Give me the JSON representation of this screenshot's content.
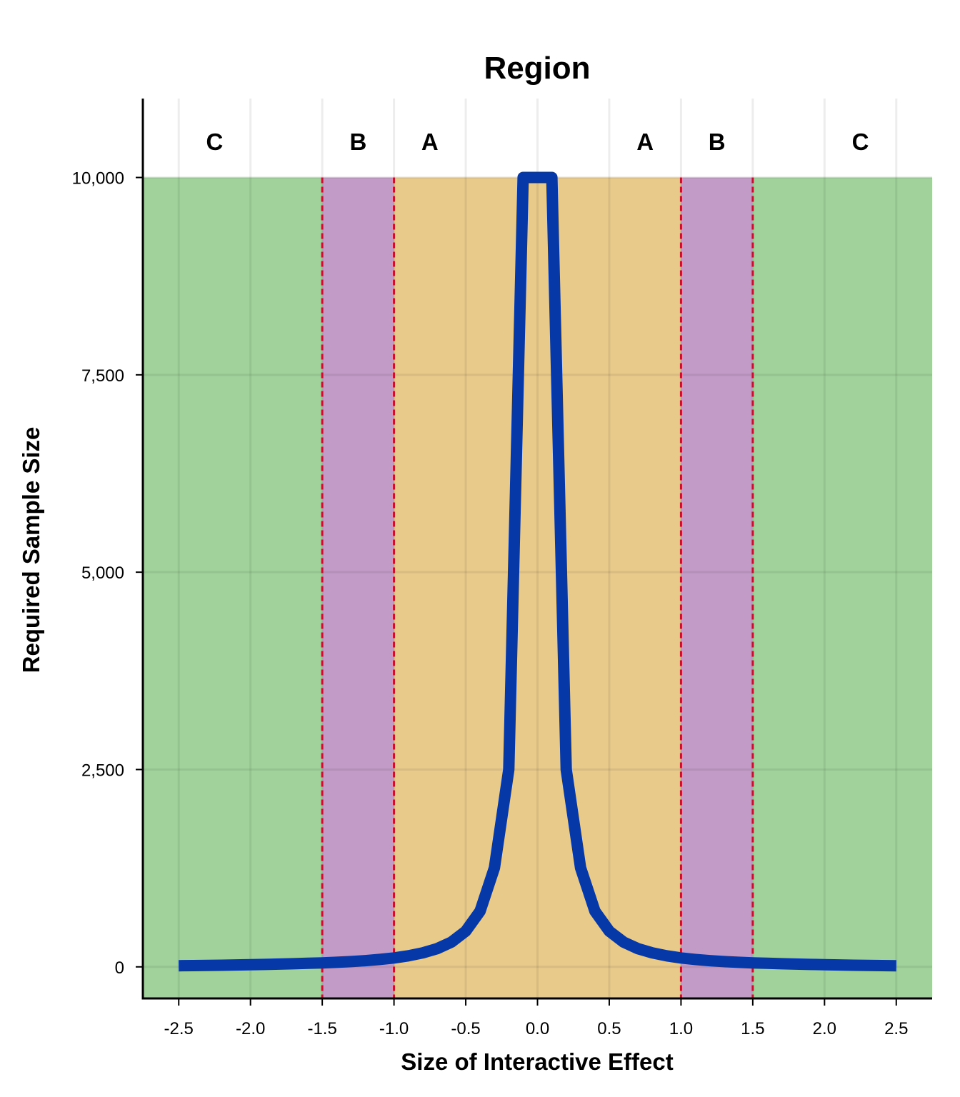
{
  "chart_data": {
    "type": "line",
    "title": "Region",
    "xlabel": "Size of Interactive Effect",
    "ylabel": "Required Sample Size",
    "xlim": [
      -2.75,
      2.75
    ],
    "ylim": [
      -400,
      11000
    ],
    "y_panel_max": 10000,
    "x_ticks": [
      -2.5,
      -2.0,
      -1.5,
      -1.0,
      -0.5,
      0.0,
      0.5,
      1.0,
      1.5,
      2.0,
      2.5
    ],
    "x_tick_labels": [
      "-2.5",
      "-2.0",
      "-1.5",
      "-1.0",
      "-0.5",
      "0.0",
      "0.5",
      "1.0",
      "1.5",
      "2.0",
      "2.5"
    ],
    "y_ticks": [
      0,
      2500,
      5000,
      7500,
      10000
    ],
    "y_tick_labels": [
      "0",
      "2,500",
      "5,000",
      "7,500",
      "10,000"
    ],
    "grid": true,
    "regions": [
      {
        "label": "C",
        "x": [
          -2.75,
          -1.5
        ],
        "color": "#a1d29b"
      },
      {
        "label": "B",
        "x": [
          -1.5,
          -1.0
        ],
        "color": "#c29bc7"
      },
      {
        "label": "A",
        "x": [
          -1.0,
          1.0
        ],
        "color": "#e8ca8b"
      },
      {
        "label": "B",
        "x": [
          1.0,
          1.5
        ],
        "color": "#c29bc7"
      },
      {
        "label": "C",
        "x": [
          1.5,
          2.75
        ],
        "color": "#a1d29b"
      }
    ],
    "region_labels": [
      {
        "text": "C",
        "x": -2.25
      },
      {
        "text": "B",
        "x": -1.25
      },
      {
        "text": "A",
        "x": -0.75
      },
      {
        "text": "A",
        "x": 0.75
      },
      {
        "text": "B",
        "x": 1.25
      },
      {
        "text": "C",
        "x": 2.25
      }
    ],
    "thresholds": [
      -1.5,
      -1.0,
      1.0,
      1.5
    ],
    "threshold_color": "#c8102e",
    "series": [
      {
        "color": "#0638a8",
        "x": [
          -2.5,
          -2.4,
          -2.3,
          -2.2,
          -2.1,
          -2.0,
          -1.9,
          -1.8,
          -1.7,
          -1.6,
          -1.5,
          -1.4,
          -1.3,
          -1.2,
          -1.1,
          -1.0,
          -0.9,
          -0.8,
          -0.7,
          -0.6,
          -0.5,
          -0.4,
          -0.3,
          -0.2,
          -0.1,
          0.1,
          0.2,
          0.3,
          0.4,
          0.5,
          0.6,
          0.7,
          0.8,
          0.9,
          1.0,
          1.1,
          1.2,
          1.3,
          1.4,
          1.5,
          1.6,
          1.7,
          1.8,
          1.9,
          2.0,
          2.1,
          2.2,
          2.3,
          2.4,
          2.5
        ],
        "y": [
          14,
          16,
          18,
          21,
          24,
          28,
          31,
          35,
          40,
          45,
          50,
          58,
          67,
          79,
          94,
          113,
          140,
          177,
          231,
          314,
          452,
          706,
          1255,
          2500,
          10000,
          10000,
          2500,
          1255,
          706,
          452,
          314,
          231,
          177,
          140,
          113,
          94,
          79,
          67,
          58,
          50,
          45,
          40,
          35,
          31,
          28,
          24,
          21,
          18,
          16,
          14
        ]
      }
    ]
  }
}
